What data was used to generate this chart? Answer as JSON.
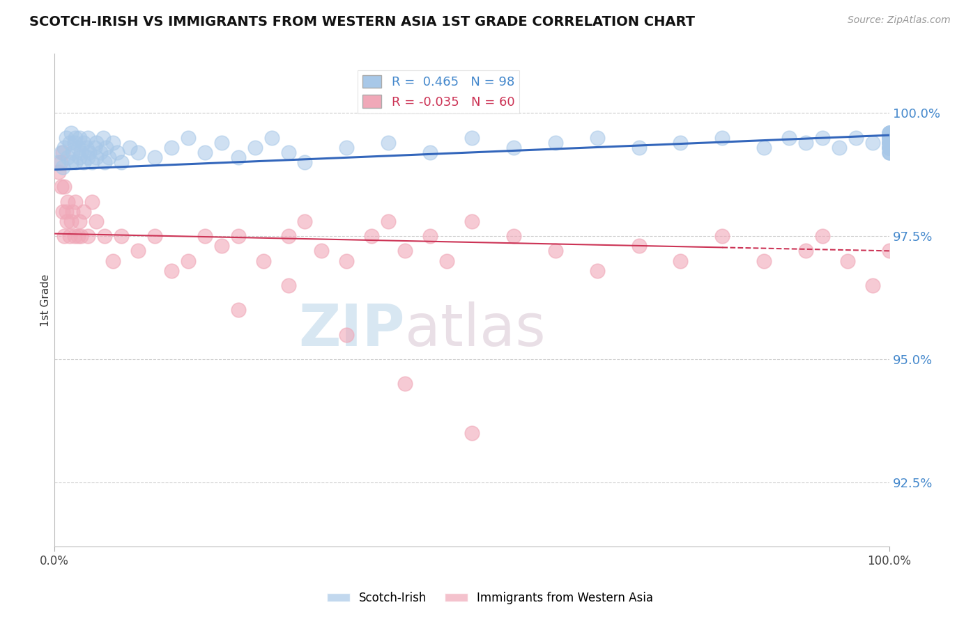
{
  "title": "SCOTCH-IRISH VS IMMIGRANTS FROM WESTERN ASIA 1ST GRADE CORRELATION CHART",
  "source": "Source: ZipAtlas.com",
  "ylabel": "1st Grade",
  "ytick_values": [
    92.5,
    95.0,
    97.5,
    100.0
  ],
  "xlim": [
    0.0,
    100.0
  ],
  "ylim": [
    91.2,
    101.2
  ],
  "blue_R": 0.465,
  "blue_N": 98,
  "pink_R": -0.035,
  "pink_N": 60,
  "blue_color": "#a8c8e8",
  "pink_color": "#f0a8b8",
  "blue_line_color": "#3366bb",
  "pink_line_color": "#cc3355",
  "legend_blue": "Scotch-Irish",
  "legend_pink": "Immigrants from Western Asia",
  "watermark_zip": "ZIP",
  "watermark_atlas": "atlas",
  "blue_line_y0": 98.85,
  "blue_line_y1": 99.55,
  "pink_line_y0": 97.55,
  "pink_line_y1": 97.2,
  "pink_line_solid_end": 80,
  "blue_scatter_x": [
    0.5,
    0.8,
    1.0,
    1.2,
    1.4,
    1.6,
    1.8,
    2.0,
    2.0,
    2.2,
    2.4,
    2.5,
    2.5,
    2.8,
    3.0,
    3.0,
    3.2,
    3.5,
    3.5,
    3.8,
    4.0,
    4.0,
    4.2,
    4.5,
    4.8,
    5.0,
    5.0,
    5.5,
    5.8,
    6.0,
    6.2,
    6.5,
    7.0,
    7.5,
    8.0,
    9.0,
    10.0,
    12.0,
    14.0,
    16.0,
    18.0,
    20.0,
    22.0,
    24.0,
    26.0,
    28.0,
    30.0,
    35.0,
    40.0,
    45.0,
    50.0,
    55.0,
    60.0,
    65.0,
    70.0,
    75.0,
    80.0,
    85.0,
    88.0,
    90.0,
    92.0,
    94.0,
    96.0,
    98.0,
    100.0,
    100.0,
    100.0,
    100.0,
    100.0,
    100.0,
    100.0,
    100.0,
    100.0,
    100.0,
    100.0,
    100.0,
    100.0,
    100.0,
    100.0,
    100.0,
    100.0,
    100.0,
    100.0,
    100.0,
    100.0,
    100.0,
    100.0,
    100.0,
    100.0,
    100.0,
    100.0,
    100.0,
    100.0,
    100.0,
    100.0,
    100.0,
    100.0,
    100.0
  ],
  "blue_scatter_y": [
    99.0,
    99.2,
    98.9,
    99.3,
    99.5,
    99.1,
    99.4,
    99.0,
    99.6,
    99.2,
    99.4,
    99.0,
    99.5,
    99.3,
    99.1,
    99.5,
    99.2,
    99.4,
    99.0,
    99.3,
    99.1,
    99.5,
    99.2,
    99.0,
    99.3,
    99.4,
    99.1,
    99.2,
    99.5,
    99.0,
    99.3,
    99.1,
    99.4,
    99.2,
    99.0,
    99.3,
    99.2,
    99.1,
    99.3,
    99.5,
    99.2,
    99.4,
    99.1,
    99.3,
    99.5,
    99.2,
    99.0,
    99.3,
    99.4,
    99.2,
    99.5,
    99.3,
    99.4,
    99.5,
    99.3,
    99.4,
    99.5,
    99.3,
    99.5,
    99.4,
    99.5,
    99.3,
    99.5,
    99.4,
    99.5,
    99.3,
    99.4,
    99.5,
    99.6,
    99.3,
    99.5,
    99.4,
    99.2,
    99.5,
    99.3,
    99.4,
    99.6,
    99.3,
    99.5,
    99.4,
    99.2,
    99.6,
    99.5,
    99.3,
    99.4,
    99.6,
    99.2,
    99.5,
    99.3,
    99.4,
    99.6,
    99.5,
    99.3,
    99.4,
    99.6,
    99.5,
    99.3,
    99.4
  ],
  "pink_scatter_x": [
    0.5,
    0.7,
    0.8,
    1.0,
    1.0,
    1.2,
    1.2,
    1.4,
    1.5,
    1.6,
    1.8,
    2.0,
    2.2,
    2.4,
    2.5,
    2.8,
    3.0,
    3.2,
    3.5,
    4.0,
    4.5,
    5.0,
    6.0,
    7.0,
    8.0,
    10.0,
    12.0,
    14.0,
    16.0,
    18.0,
    20.0,
    22.0,
    25.0,
    28.0,
    30.0,
    32.0,
    35.0,
    38.0,
    40.0,
    42.0,
    45.0,
    47.0,
    50.0,
    55.0,
    60.0,
    65.0,
    70.0,
    75.0,
    80.0,
    85.0,
    90.0,
    92.0,
    95.0,
    98.0,
    100.0,
    22.0,
    28.0,
    35.0,
    42.0,
    50.0
  ],
  "pink_scatter_y": [
    98.8,
    99.0,
    98.5,
    99.2,
    98.0,
    98.5,
    97.5,
    98.0,
    97.8,
    98.2,
    97.5,
    97.8,
    98.0,
    97.5,
    98.2,
    97.5,
    97.8,
    97.5,
    98.0,
    97.5,
    98.2,
    97.8,
    97.5,
    97.0,
    97.5,
    97.2,
    97.5,
    96.8,
    97.0,
    97.5,
    97.3,
    97.5,
    97.0,
    97.5,
    97.8,
    97.2,
    97.0,
    97.5,
    97.8,
    97.2,
    97.5,
    97.0,
    97.8,
    97.5,
    97.2,
    96.8,
    97.3,
    97.0,
    97.5,
    97.0,
    97.2,
    97.5,
    97.0,
    96.5,
    97.2,
    96.0,
    96.5,
    95.5,
    94.5,
    93.5
  ]
}
